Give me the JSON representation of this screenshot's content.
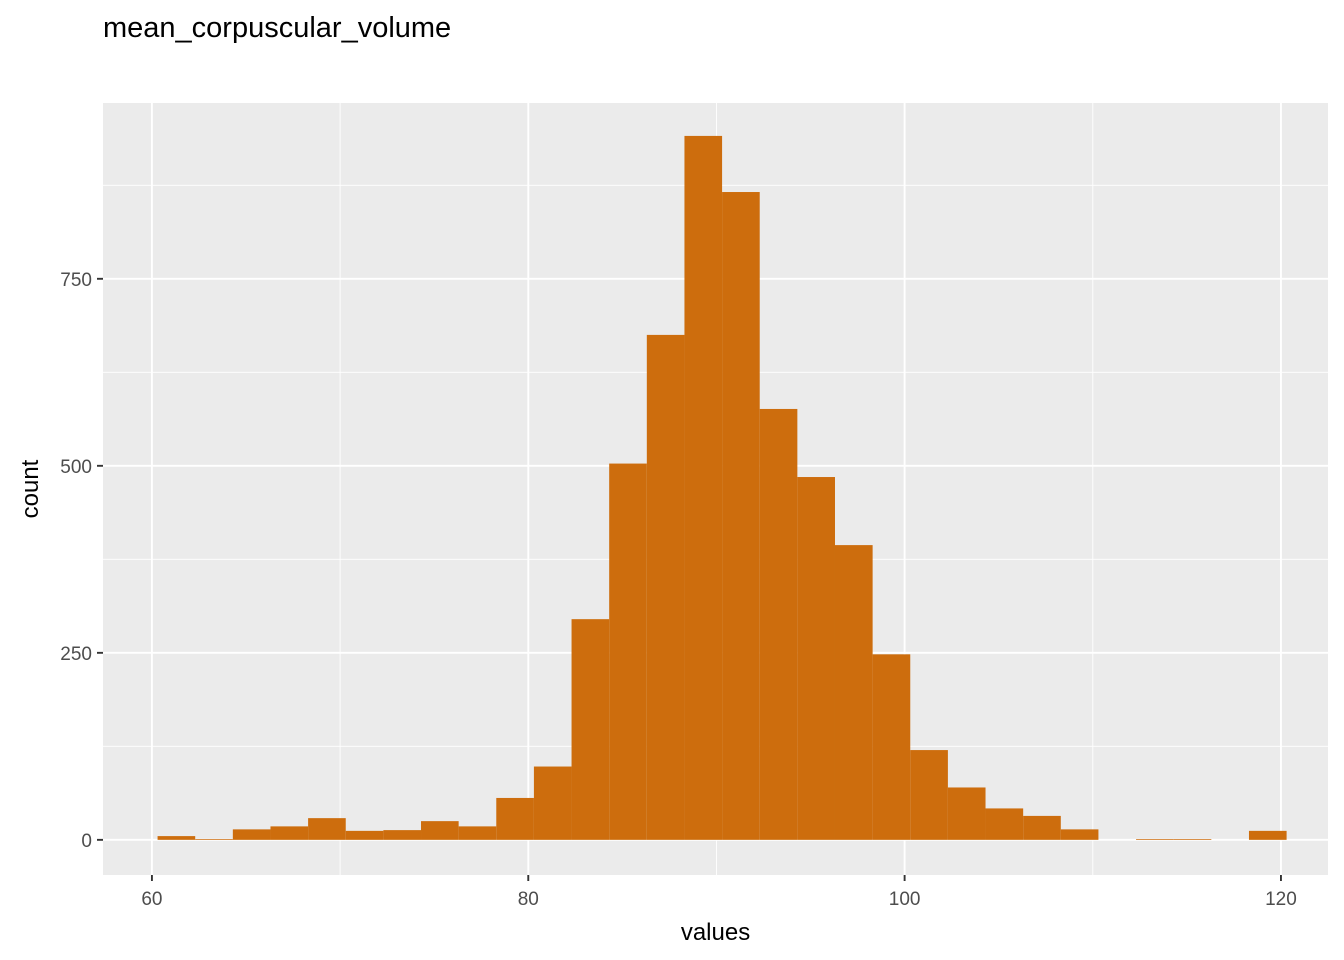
{
  "chart_data": {
    "type": "bar",
    "title": "mean_corpuscular_volume",
    "xlabel": "values",
    "ylabel": "count",
    "bar_color": "#CD6D0D",
    "panel_color": "#EBEBEB",
    "grid_color": "#FFFFFF",
    "grid": true,
    "xlim": [
      57.4,
      122.5
    ],
    "ylim": [
      -47,
      985
    ],
    "x_major_ticks": [
      60,
      80,
      100,
      120
    ],
    "x_minor_ticks": [
      70,
      90,
      110
    ],
    "y_major_ticks": [
      0,
      250,
      500,
      750
    ],
    "y_minor_ticks": [
      125,
      375,
      625,
      875
    ],
    "bin_width": 2,
    "bins": [
      {
        "x0": 60.3,
        "x1": 62.3,
        "count": 5
      },
      {
        "x0": 62.3,
        "x1": 64.3,
        "count": 1
      },
      {
        "x0": 64.3,
        "x1": 66.3,
        "count": 14
      },
      {
        "x0": 66.3,
        "x1": 68.3,
        "count": 18
      },
      {
        "x0": 68.3,
        "x1": 70.3,
        "count": 29
      },
      {
        "x0": 70.3,
        "x1": 72.3,
        "count": 12
      },
      {
        "x0": 72.3,
        "x1": 74.3,
        "count": 13
      },
      {
        "x0": 74.3,
        "x1": 76.3,
        "count": 25
      },
      {
        "x0": 76.3,
        "x1": 78.3,
        "count": 18
      },
      {
        "x0": 78.3,
        "x1": 80.3,
        "count": 56
      },
      {
        "x0": 80.3,
        "x1": 82.3,
        "count": 98
      },
      {
        "x0": 82.3,
        "x1": 84.3,
        "count": 295
      },
      {
        "x0": 84.3,
        "x1": 86.3,
        "count": 503
      },
      {
        "x0": 86.3,
        "x1": 88.3,
        "count": 675
      },
      {
        "x0": 88.3,
        "x1": 90.3,
        "count": 941
      },
      {
        "x0": 90.3,
        "x1": 92.3,
        "count": 866
      },
      {
        "x0": 92.3,
        "x1": 94.3,
        "count": 576
      },
      {
        "x0": 94.3,
        "x1": 96.3,
        "count": 485
      },
      {
        "x0": 96.3,
        "x1": 98.3,
        "count": 394
      },
      {
        "x0": 98.3,
        "x1": 100.3,
        "count": 248
      },
      {
        "x0": 100.3,
        "x1": 102.3,
        "count": 120
      },
      {
        "x0": 102.3,
        "x1": 104.3,
        "count": 70
      },
      {
        "x0": 104.3,
        "x1": 106.3,
        "count": 42
      },
      {
        "x0": 106.3,
        "x1": 108.3,
        "count": 32
      },
      {
        "x0": 108.3,
        "x1": 110.3,
        "count": 14
      },
      {
        "x0": 110.3,
        "x1": 112.3,
        "count": 0
      },
      {
        "x0": 112.3,
        "x1": 114.3,
        "count": 1
      },
      {
        "x0": 114.3,
        "x1": 116.3,
        "count": 1
      },
      {
        "x0": 116.3,
        "x1": 118.3,
        "count": 0
      },
      {
        "x0": 118.3,
        "x1": 120.3,
        "count": 12
      }
    ]
  }
}
